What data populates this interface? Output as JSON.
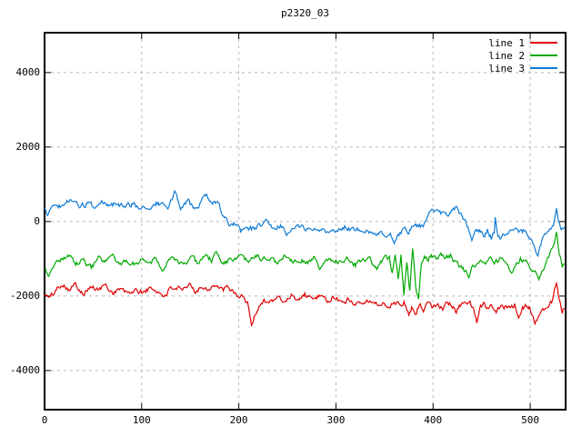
{
  "chart_data": {
    "type": "line",
    "title": "p2320_03",
    "xlabel": "",
    "ylabel": "",
    "xlim": [
      0,
      536.5
    ],
    "ylim": [
      -5050,
      5070
    ],
    "xticks": [
      0,
      100,
      200,
      300,
      400,
      500
    ],
    "yticks": [
      -4000,
      -2000,
      0,
      2000,
      4000
    ],
    "grid": true,
    "grid_color": "#b8b8b8",
    "border_color": "#000000",
    "background": "#ffffff",
    "legend_position": "top-right-inside",
    "noise": {
      "sigma": 62,
      "phi": 0.55,
      "seeds": [
        101,
        202,
        303
      ]
    },
    "series": [
      {
        "name": "line 1",
        "color": "#e00000",
        "keypoints": [
          [
            0,
            -1950
          ],
          [
            5,
            -2050
          ],
          [
            10,
            -1900
          ],
          [
            18,
            -1650
          ],
          [
            25,
            -1800
          ],
          [
            32,
            -1700
          ],
          [
            40,
            -1900
          ],
          [
            48,
            -1750
          ],
          [
            55,
            -1850
          ],
          [
            62,
            -1700
          ],
          [
            70,
            -1900
          ],
          [
            78,
            -1800
          ],
          [
            85,
            -1950
          ],
          [
            92,
            -1850
          ],
          [
            100,
            -1900
          ],
          [
            108,
            -1800
          ],
          [
            115,
            -1850
          ],
          [
            122,
            -2000
          ],
          [
            128,
            -1850
          ],
          [
            135,
            -1750
          ],
          [
            142,
            -1900
          ],
          [
            150,
            -1700
          ],
          [
            155,
            -1850
          ],
          [
            162,
            -1750
          ],
          [
            168,
            -1800
          ],
          [
            175,
            -1700
          ],
          [
            182,
            -1850
          ],
          [
            188,
            -1800
          ],
          [
            195,
            -1900
          ],
          [
            200,
            -2000
          ],
          [
            205,
            -2050
          ],
          [
            209,
            -2200
          ],
          [
            213,
            -2750
          ],
          [
            217,
            -2500
          ],
          [
            221,
            -2250
          ],
          [
            226,
            -2100
          ],
          [
            232,
            -2150
          ],
          [
            240,
            -2050
          ],
          [
            247,
            -2150
          ],
          [
            255,
            -1950
          ],
          [
            262,
            -2100
          ],
          [
            268,
            -1950
          ],
          [
            275,
            -2100
          ],
          [
            282,
            -2000
          ],
          [
            290,
            -2150
          ],
          [
            297,
            -2050
          ],
          [
            305,
            -2150
          ],
          [
            312,
            -2100
          ],
          [
            320,
            -2200
          ],
          [
            327,
            -2100
          ],
          [
            335,
            -2150
          ],
          [
            342,
            -2250
          ],
          [
            348,
            -2150
          ],
          [
            352,
            -2300
          ],
          [
            356,
            -2250
          ],
          [
            360,
            -2100
          ],
          [
            365,
            -2250
          ],
          [
            370,
            -2150
          ],
          [
            375,
            -2500
          ],
          [
            378,
            -2300
          ],
          [
            382,
            -2450
          ],
          [
            386,
            -2200
          ],
          [
            390,
            -2350
          ],
          [
            395,
            -2200
          ],
          [
            400,
            -2300
          ],
          [
            405,
            -2200
          ],
          [
            410,
            -2300
          ],
          [
            415,
            -2150
          ],
          [
            420,
            -2300
          ],
          [
            424,
            -2430
          ],
          [
            428,
            -2250
          ],
          [
            433,
            -2150
          ],
          [
            438,
            -2200
          ],
          [
            442,
            -2400
          ],
          [
            445,
            -2700
          ],
          [
            448,
            -2300
          ],
          [
            452,
            -2200
          ],
          [
            456,
            -2300
          ],
          [
            460,
            -2200
          ],
          [
            465,
            -2350
          ],
          [
            470,
            -2250
          ],
          [
            475,
            -2300
          ],
          [
            480,
            -2350
          ],
          [
            484,
            -2250
          ],
          [
            488,
            -2500
          ],
          [
            492,
            -2300
          ],
          [
            496,
            -2250
          ],
          [
            500,
            -2350
          ],
          [
            505,
            -2750
          ],
          [
            509,
            -2550
          ],
          [
            513,
            -2350
          ],
          [
            517,
            -2250
          ],
          [
            522,
            -2150
          ],
          [
            527,
            -1580
          ],
          [
            530,
            -2100
          ],
          [
            533,
            -2400
          ],
          [
            536,
            -2300
          ]
        ]
      },
      {
        "name": "line 2",
        "color": "#00a800",
        "keypoints": [
          [
            0,
            -1250
          ],
          [
            4,
            -1450
          ],
          [
            10,
            -1100
          ],
          [
            18,
            -1000
          ],
          [
            25,
            -900
          ],
          [
            32,
            -1150
          ],
          [
            40,
            -1050
          ],
          [
            48,
            -1250
          ],
          [
            55,
            -1000
          ],
          [
            62,
            -1100
          ],
          [
            70,
            -950
          ],
          [
            78,
            -1200
          ],
          [
            85,
            -1050
          ],
          [
            92,
            -1150
          ],
          [
            100,
            -1000
          ],
          [
            108,
            -1100
          ],
          [
            115,
            -950
          ],
          [
            122,
            -1300
          ],
          [
            128,
            -1050
          ],
          [
            135,
            -1000
          ],
          [
            142,
            -1200
          ],
          [
            150,
            -1000
          ],
          [
            158,
            -1100
          ],
          [
            165,
            -900
          ],
          [
            172,
            -1050
          ],
          [
            177,
            -800
          ],
          [
            182,
            -1100
          ],
          [
            190,
            -1050
          ],
          [
            200,
            -950
          ],
          [
            210,
            -1100
          ],
          [
            218,
            -900
          ],
          [
            225,
            -1050
          ],
          [
            232,
            -950
          ],
          [
            240,
            -1150
          ],
          [
            247,
            -900
          ],
          [
            255,
            -1050
          ],
          [
            262,
            -1000
          ],
          [
            270,
            -1100
          ],
          [
            277,
            -950
          ],
          [
            283,
            -1280
          ],
          [
            290,
            -1050
          ],
          [
            297,
            -1000
          ],
          [
            305,
            -1100
          ],
          [
            312,
            -950
          ],
          [
            320,
            -1150
          ],
          [
            327,
            -1050
          ],
          [
            335,
            -1000
          ],
          [
            342,
            -1250
          ],
          [
            348,
            -1050
          ],
          [
            352,
            -1000
          ],
          [
            355,
            -1000
          ],
          [
            358,
            -1350
          ],
          [
            361,
            -800
          ],
          [
            364,
            -1500
          ],
          [
            367,
            -900
          ],
          [
            370,
            -2050
          ],
          [
            373,
            -1100
          ],
          [
            376,
            -1850
          ],
          [
            379,
            -650
          ],
          [
            382,
            -1700
          ],
          [
            385,
            -2100
          ],
          [
            388,
            -1200
          ],
          [
            391,
            -950
          ],
          [
            395,
            -1050
          ],
          [
            398,
            -900
          ],
          [
            403,
            -1000
          ],
          [
            408,
            -850
          ],
          [
            413,
            -1000
          ],
          [
            418,
            -900
          ],
          [
            424,
            -1100
          ],
          [
            430,
            -1250
          ],
          [
            437,
            -1450
          ],
          [
            442,
            -1200
          ],
          [
            448,
            -1050
          ],
          [
            452,
            -1150
          ],
          [
            458,
            -1000
          ],
          [
            463,
            -1100
          ],
          [
            468,
            -1050
          ],
          [
            472,
            -950
          ],
          [
            477,
            -1200
          ],
          [
            481,
            -1400
          ],
          [
            486,
            -1150
          ],
          [
            490,
            -1000
          ],
          [
            495,
            -1100
          ],
          [
            500,
            -1200
          ],
          [
            505,
            -1350
          ],
          [
            509,
            -1550
          ],
          [
            514,
            -1200
          ],
          [
            519,
            -1000
          ],
          [
            523,
            -700
          ],
          [
            527,
            -320
          ],
          [
            530,
            -900
          ],
          [
            533,
            -1200
          ],
          [
            536,
            -1100
          ]
        ]
      },
      {
        "name": "line 3",
        "color": "#0f7ad6",
        "keypoints": [
          [
            0,
            300
          ],
          [
            3,
            150
          ],
          [
            8,
            480
          ],
          [
            14,
            400
          ],
          [
            20,
            450
          ],
          [
            29,
            620
          ],
          [
            35,
            380
          ],
          [
            45,
            480
          ],
          [
            52,
            350
          ],
          [
            60,
            470
          ],
          [
            68,
            400
          ],
          [
            75,
            520
          ],
          [
            82,
            380
          ],
          [
            90,
            450
          ],
          [
            95,
            420
          ],
          [
            103,
            380
          ],
          [
            110,
            380
          ],
          [
            116,
            500
          ],
          [
            122,
            420
          ],
          [
            127,
            350
          ],
          [
            134,
            780
          ],
          [
            140,
            400
          ],
          [
            148,
            550
          ],
          [
            155,
            300
          ],
          [
            160,
            480
          ],
          [
            167,
            680
          ],
          [
            172,
            420
          ],
          [
            178,
            520
          ],
          [
            185,
            100
          ],
          [
            190,
            -80
          ],
          [
            195,
            -60
          ],
          [
            202,
            -290
          ],
          [
            207,
            -120
          ],
          [
            213,
            -200
          ],
          [
            220,
            -130
          ],
          [
            229,
            50
          ],
          [
            237,
            -180
          ],
          [
            245,
            -120
          ],
          [
            250,
            -320
          ],
          [
            258,
            -200
          ],
          [
            265,
            -120
          ],
          [
            273,
            -250
          ],
          [
            280,
            -150
          ],
          [
            288,
            -280
          ],
          [
            295,
            -200
          ],
          [
            303,
            -230
          ],
          [
            310,
            -120
          ],
          [
            318,
            -250
          ],
          [
            325,
            -180
          ],
          [
            331,
            -190
          ],
          [
            338,
            -280
          ],
          [
            345,
            -310
          ],
          [
            352,
            -480
          ],
          [
            356,
            -400
          ],
          [
            360,
            -520
          ],
          [
            365,
            -350
          ],
          [
            370,
            -230
          ],
          [
            375,
            -300
          ],
          [
            380,
            -60
          ],
          [
            385,
            -150
          ],
          [
            390,
            -100
          ],
          [
            395,
            150
          ],
          [
            400,
            280
          ],
          [
            405,
            370
          ],
          [
            408,
            200
          ],
          [
            412,
            300
          ],
          [
            416,
            150
          ],
          [
            420,
            250
          ],
          [
            425,
            380
          ],
          [
            428,
            200
          ],
          [
            432,
            50
          ],
          [
            436,
            -150
          ],
          [
            440,
            -600
          ],
          [
            444,
            -300
          ],
          [
            448,
            -250
          ],
          [
            452,
            -400
          ],
          [
            456,
            -220
          ],
          [
            460,
            -440
          ],
          [
            463,
            -300
          ],
          [
            464,
            100
          ],
          [
            466,
            -350
          ],
          [
            470,
            -500
          ],
          [
            475,
            -300
          ],
          [
            480,
            -250
          ],
          [
            485,
            -170
          ],
          [
            490,
            -300
          ],
          [
            495,
            -250
          ],
          [
            500,
            -400
          ],
          [
            504,
            -600
          ],
          [
            508,
            -900
          ],
          [
            512,
            -500
          ],
          [
            516,
            -350
          ],
          [
            520,
            -250
          ],
          [
            524,
            -80
          ],
          [
            527,
            380
          ],
          [
            529,
            -60
          ],
          [
            532,
            -250
          ],
          [
            536,
            -150
          ]
        ]
      }
    ]
  }
}
